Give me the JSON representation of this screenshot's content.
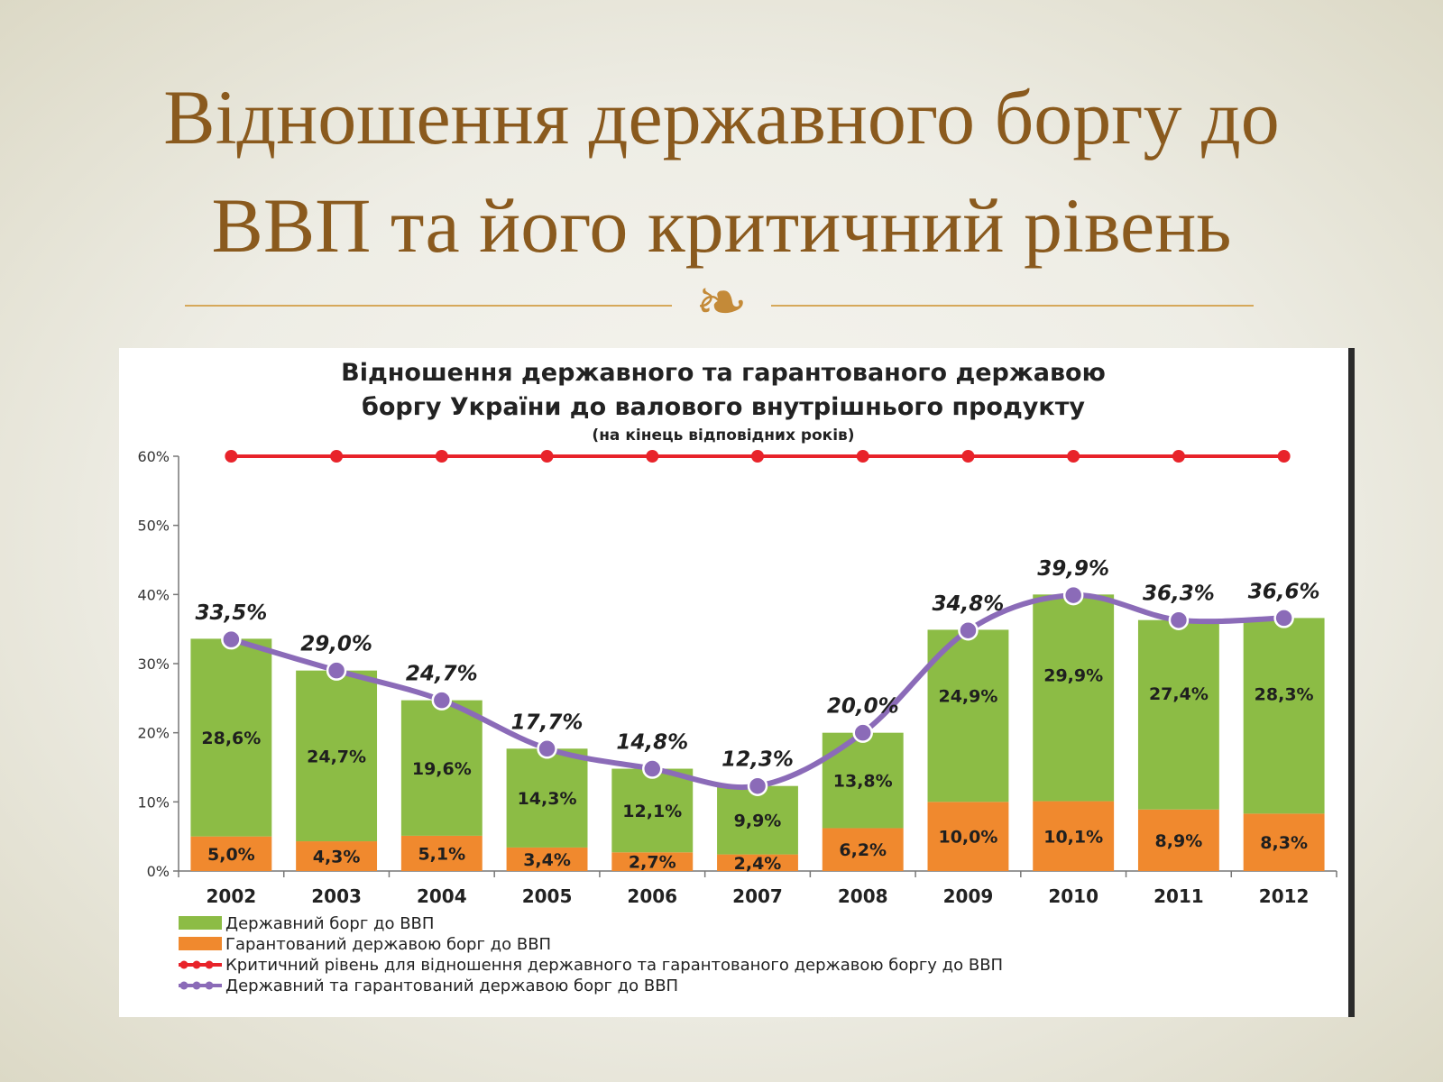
{
  "slide": {
    "title_line1": "Відношення державного боргу до",
    "title_line2": "ВВП та його критичний рівень",
    "ornament": "❧"
  },
  "chart_data": {
    "type": "bar",
    "stacked": true,
    "title_line1": "Відношення державного та гарантованого державою",
    "title_line2": "боргу України до валового внутрішнього продукту",
    "subtitle": "(на кінець відповідних років)",
    "categories": [
      "2002",
      "2003",
      "2004",
      "2005",
      "2006",
      "2007",
      "2008",
      "2009",
      "2010",
      "2011",
      "2012"
    ],
    "ylim": [
      0,
      60
    ],
    "yticks": [
      0,
      10,
      20,
      30,
      40,
      50,
      60
    ],
    "ytick_labels": [
      "0%",
      "10%",
      "20%",
      "30%",
      "40%",
      "50%",
      "60%"
    ],
    "series": [
      {
        "name": "Гарантований державою борг до ВВП",
        "kind": "bar",
        "color": "#f0892e",
        "values": [
          5.0,
          4.3,
          5.1,
          3.4,
          2.7,
          2.4,
          6.2,
          10.0,
          10.1,
          8.9,
          8.3
        ],
        "labels": [
          "5,0%",
          "4,3%",
          "5,1%",
          "3,4%",
          "2,7%",
          "2,4%",
          "6,2%",
          "10,0%",
          "10,1%",
          "8,9%",
          "8,3%"
        ]
      },
      {
        "name": "Державний борг до ВВП",
        "kind": "bar",
        "color": "#8cbc45",
        "values": [
          28.6,
          24.7,
          19.6,
          14.3,
          12.1,
          9.9,
          13.8,
          24.9,
          29.9,
          27.4,
          28.3
        ],
        "labels": [
          "28,6%",
          "24,7%",
          "19,6%",
          "14,3%",
          "12,1%",
          "9,9%",
          "13,8%",
          "24,9%",
          "29,9%",
          "27,4%",
          "28,3%"
        ]
      },
      {
        "name": "Державний та гарантований державою борг до ВВП",
        "kind": "line",
        "color": "#8b6bb8",
        "values": [
          33.5,
          29.0,
          24.7,
          17.7,
          14.8,
          12.3,
          20.0,
          34.8,
          39.9,
          36.3,
          36.6
        ],
        "labels": [
          "33,5%",
          "29,0%",
          "24,7%",
          "17,7%",
          "14,8%",
          "12,3%",
          "20,0%",
          "34,8%",
          "39,9%",
          "36,3%",
          "36,6%"
        ]
      },
      {
        "name": "Критичний рівень для відношення державного та гарантованого державою боргу до ВВП",
        "kind": "line",
        "color": "#e8232a",
        "values": [
          60,
          60,
          60,
          60,
          60,
          60,
          60,
          60,
          60,
          60,
          60
        ]
      }
    ],
    "legend": [
      {
        "label": "Державний борг до ВВП",
        "color": "#8cbc45",
        "kind": "bar"
      },
      {
        "label": "Гарантований державою борг до ВВП",
        "color": "#f0892e",
        "kind": "bar"
      },
      {
        "label": "Критичний рівень для відношення державного та гарантованого державою боргу до ВВП",
        "color": "#e8232a",
        "kind": "line"
      },
      {
        "label": "Державний та гарантований державою борг до ВВП",
        "color": "#8b6bb8",
        "kind": "line"
      }
    ]
  }
}
